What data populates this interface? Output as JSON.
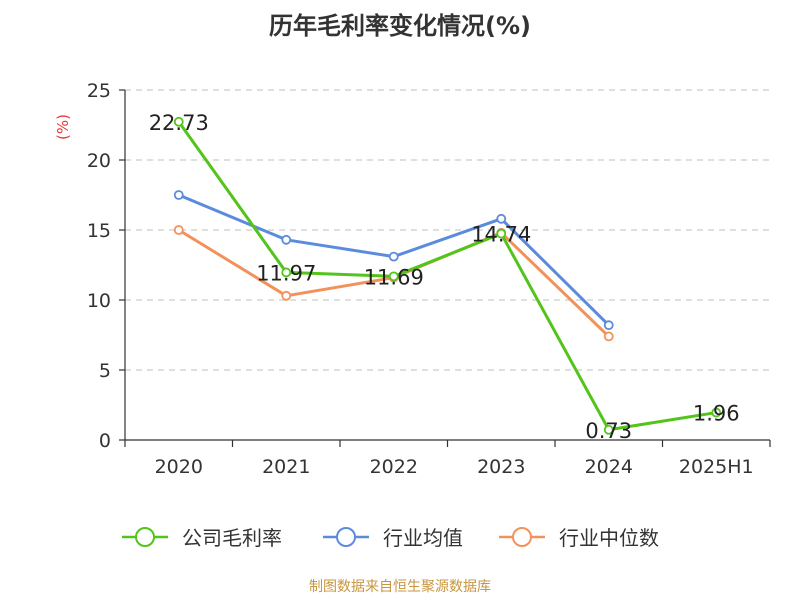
{
  "title": "历年毛利率变化情况(%)",
  "source": "制图数据来自恒生聚源数据库",
  "source_color": "#c8963e",
  "chart_data": {
    "type": "line",
    "title": "历年毛利率变化情况(%)",
    "ylabel": "(%)",
    "ylabel_color": "#e53935",
    "ylim": [
      0,
      25
    ],
    "yticks": [
      0,
      5,
      10,
      15,
      20,
      25
    ],
    "grid": "horizontal-dashed",
    "legend": "bottom",
    "categories": [
      "2020",
      "2021",
      "2022",
      "2023",
      "2024",
      "2025H1"
    ],
    "series": [
      {
        "name": "公司毛利率",
        "color": "#52c41a",
        "values": [
          22.73,
          11.97,
          11.69,
          14.74,
          0.73,
          1.96
        ],
        "labels": [
          "22.73",
          "11.97",
          "11.69",
          "14.74",
          "0.73",
          "1.96"
        ]
      },
      {
        "name": "行业均值",
        "color": "#5b8bdc",
        "values": [
          17.5,
          14.3,
          13.1,
          15.8,
          8.2,
          null
        ]
      },
      {
        "name": "行业中位数",
        "color": "#f2925a",
        "values": [
          15.0,
          10.3,
          11.6,
          14.8,
          7.4,
          null
        ]
      }
    ]
  }
}
